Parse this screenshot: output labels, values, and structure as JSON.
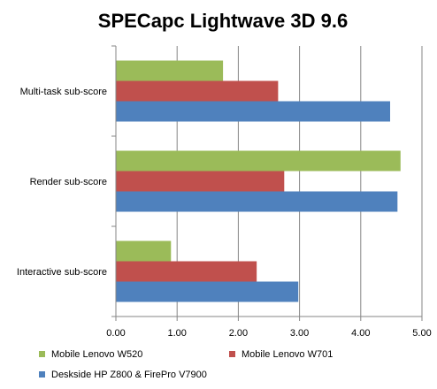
{
  "chart_data": {
    "type": "bar",
    "orientation": "horizontal",
    "title": "SPECapc Lightwave 3D 9.6",
    "categories": [
      "Multi-task sub-score",
      "Render sub-score",
      "Interactive sub-score"
    ],
    "series": [
      {
        "name": "Mobile Lenovo W520",
        "color": "#9BBB59",
        "values": [
          1.75,
          4.65,
          0.9
        ]
      },
      {
        "name": "Mobile Lenovo W701",
        "color": "#C0504D",
        "values": [
          2.65,
          2.75,
          2.3
        ]
      },
      {
        "name": "Deskside HP Z800 & FirePro V7900",
        "color": "#4F81BD",
        "values": [
          4.48,
          4.6,
          2.98
        ]
      }
    ],
    "xlim": [
      0,
      5
    ],
    "xticks": [
      "0.00",
      "1.00",
      "2.00",
      "3.00",
      "4.00",
      "5.00"
    ],
    "grid": true,
    "legend_position": "bottom"
  }
}
